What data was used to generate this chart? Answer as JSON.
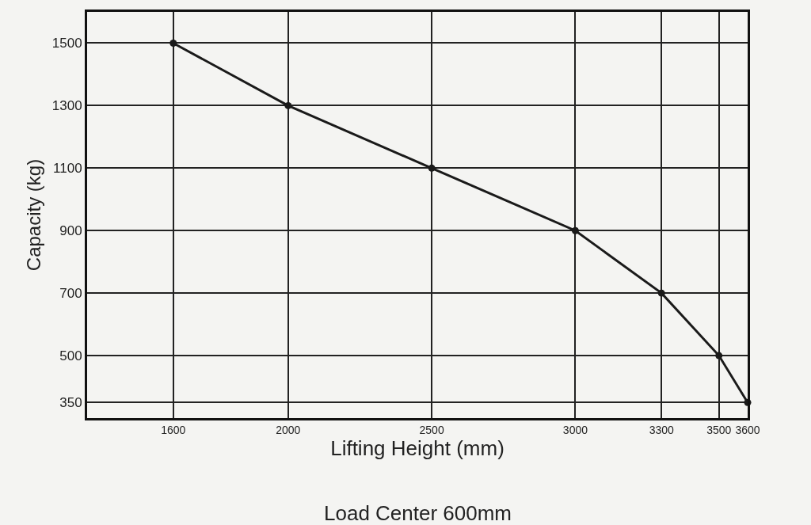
{
  "chart_data": {
    "type": "line",
    "xlabel": "Lifting Height (mm)",
    "ylabel": "Capacity (kg)",
    "annotations": [
      "Load Center 600mm"
    ],
    "x": [
      1600,
      2000,
      2500,
      3000,
      3300,
      3500,
      3600
    ],
    "values": [
      1500,
      1300,
      1100,
      900,
      700,
      500,
      350
    ],
    "color": "#1a1a1a",
    "marker": "circle",
    "line_style": "solid",
    "grid": true,
    "xlim": [
      1300,
      3600
    ],
    "xticks": [
      1600,
      2000,
      2500,
      3000,
      3300,
      3500,
      3600
    ],
    "ylim": [
      300,
      1600
    ],
    "yticks": [
      350,
      500,
      700,
      900,
      1100,
      1300,
      1500
    ]
  }
}
